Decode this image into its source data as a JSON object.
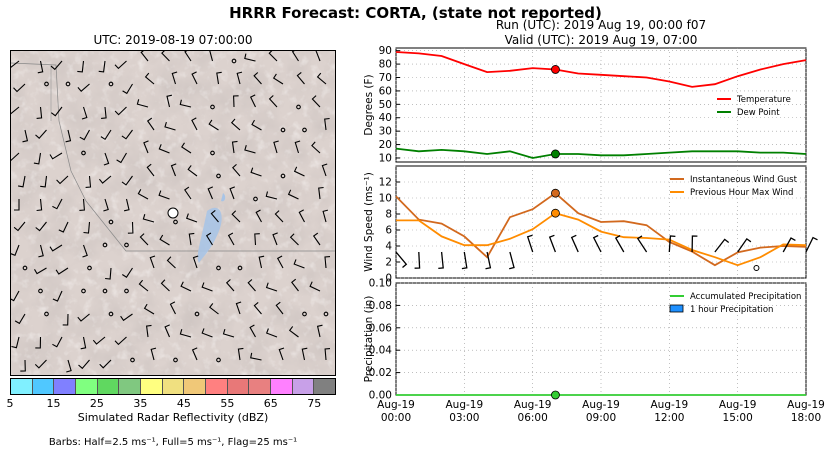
{
  "title": "HRRR Forecast: CORTA, (state not reported)",
  "map": {
    "title": "UTC: 2019-08-19 07:00:00",
    "colorbar_label": "Simulated Radar Reflectivity (dBZ)",
    "colorbar_ticks": [
      "5",
      "15",
      "25",
      "35",
      "45",
      "55",
      "65",
      "75"
    ],
    "colorbar_colors": [
      "#80f0ff",
      "#50c8ff",
      "#8080ff",
      "#80ff80",
      "#60d860",
      "#80c880",
      "#ffff80",
      "#f0e080",
      "#f0c878",
      "#ff8080",
      "#e87878",
      "#e88080",
      "#ff80ff",
      "#c8a0e8",
      "#808080"
    ],
    "barb_legend": "Barbs: Half=2.5 ms⁻¹, Full=5 ms⁻¹, Flag=25 ms⁻¹"
  },
  "run_line": "Run (UTC): 2019 Aug 19, 00:00 f07",
  "valid_line": "Valid (UTC): 2019 Aug 19, 07:00",
  "chart_data": [
    {
      "type": "line",
      "ylabel": "Degrees (F)",
      "ylim": [
        7,
        92
      ],
      "yticks": [
        10,
        20,
        30,
        40,
        50,
        60,
        70,
        80,
        90
      ],
      "legend_position": "right",
      "x_hours": [
        0,
        1,
        2,
        3,
        4,
        5,
        6,
        7,
        8,
        9,
        10,
        11,
        12,
        13,
        14,
        15,
        16,
        17,
        18
      ],
      "series": [
        {
          "name": "Temperature",
          "color": "#ff0000",
          "values": [
            89,
            88,
            86,
            80,
            74,
            75,
            77,
            76,
            73,
            72,
            71,
            70,
            67,
            63,
            65,
            71,
            76,
            80,
            83
          ]
        },
        {
          "name": "Dew Point",
          "color": "#008000",
          "values": [
            17,
            15,
            16,
            15,
            13,
            15,
            10,
            13,
            13,
            12,
            12,
            13,
            14,
            15,
            15,
            15,
            14,
            14,
            13
          ]
        }
      ],
      "marker_hour": 7,
      "grid": true
    },
    {
      "type": "line",
      "ylabel": "Wind Speed (ms⁻¹)",
      "ylim": [
        0,
        14
      ],
      "yticks": [
        0,
        2,
        4,
        6,
        8,
        10,
        12
      ],
      "legend_position": "top-right",
      "x_hours": [
        0,
        1,
        2,
        3,
        4,
        5,
        6,
        7,
        8,
        9,
        10,
        11,
        12,
        13,
        14,
        15,
        16,
        17,
        18
      ],
      "series": [
        {
          "name": "Instantaneous Wind Gust",
          "color": "#d2691e",
          "values": [
            10.2,
            7.3,
            6.8,
            5.2,
            2.6,
            7.6,
            8.6,
            10.6,
            8.1,
            7.0,
            7.1,
            6.6,
            4.5,
            3.3,
            1.6,
            3.2,
            3.8,
            4.0,
            3.9
          ]
        },
        {
          "name": "Previous Hour Max Wind",
          "color": "#ff8c00",
          "values": [
            7.2,
            7.2,
            5.2,
            4.1,
            4.1,
            4.9,
            6.1,
            8.1,
            7.3,
            5.8,
            5.1,
            5.0,
            4.8,
            3.5,
            2.6,
            1.6,
            2.6,
            4.2,
            4.1
          ]
        }
      ],
      "marker_hour": 7,
      "grid": true
    },
    {
      "type": "line",
      "ylabel": "Precipitation (in)",
      "ylim": [
        0,
        0.1
      ],
      "yticks": [
        "0.00",
        "0.02",
        "0.04",
        "0.06",
        "0.08",
        "0.10"
      ],
      "legend_position": "top-right",
      "series": [
        {
          "name": "Accumulated Precipitation",
          "color": "#32cd32",
          "values": [
            0,
            0,
            0,
            0,
            0,
            0,
            0,
            0,
            0,
            0,
            0,
            0,
            0,
            0,
            0,
            0,
            0,
            0,
            0
          ]
        },
        {
          "name": "1 hour Precipitation",
          "color": "#1e90ff",
          "type": "bar",
          "values": [
            0,
            0,
            0,
            0,
            0,
            0,
            0,
            0,
            0,
            0,
            0,
            0,
            0,
            0,
            0,
            0,
            0,
            0,
            0
          ]
        }
      ],
      "marker_hour": 7,
      "xticks": [
        {
          "hour": 0,
          "l1": "Aug-19",
          "l2": "00:00"
        },
        {
          "hour": 3,
          "l1": "Aug-19",
          "l2": "03:00"
        },
        {
          "hour": 6,
          "l1": "Aug-19",
          "l2": "06:00"
        },
        {
          "hour": 9,
          "l1": "Aug-19",
          "l2": "09:00"
        },
        {
          "hour": 12,
          "l1": "Aug-19",
          "l2": "12:00"
        },
        {
          "hour": 15,
          "l1": "Aug-19",
          "l2": "15:00"
        },
        {
          "hour": 18,
          "l1": "Aug-19",
          "l2": "18:00"
        }
      ],
      "grid": true
    }
  ]
}
